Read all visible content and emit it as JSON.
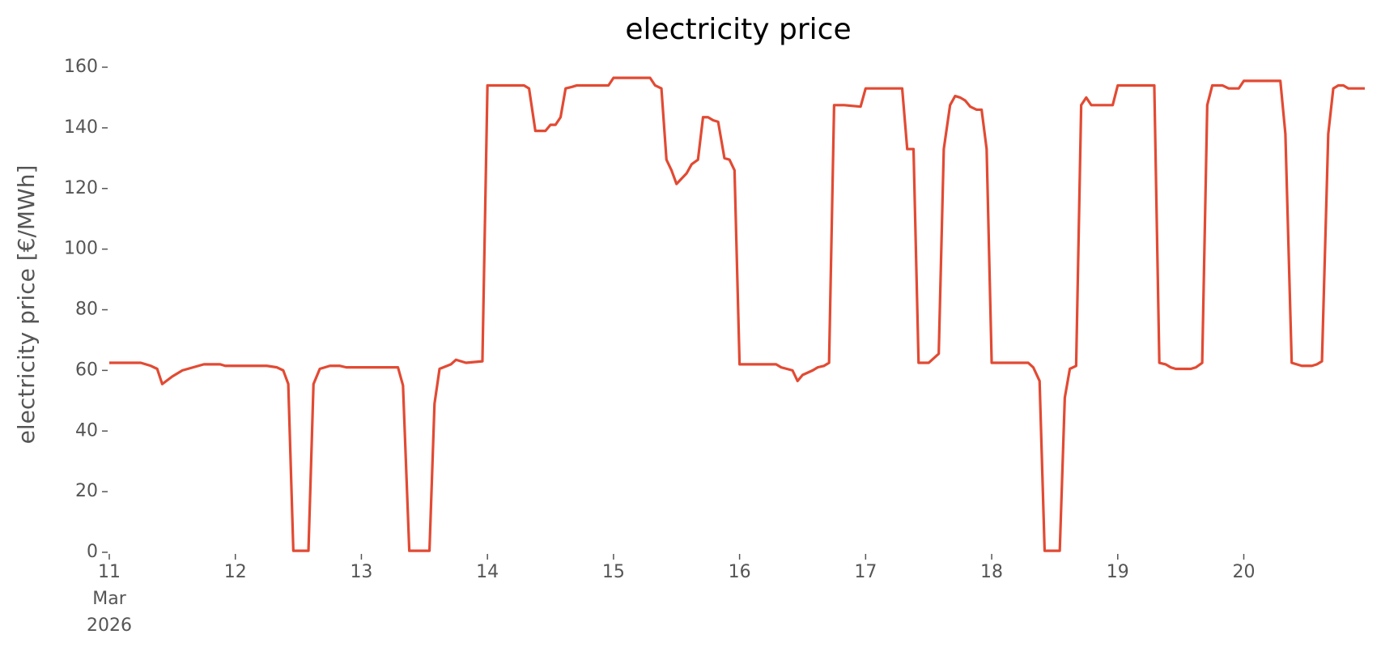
{
  "chart_data": {
    "type": "line",
    "title": "electricity price",
    "ylabel": "electricity price [€/MWh]",
    "xlim": [
      11,
      20.96
    ],
    "ylim": [
      0,
      160
    ],
    "xticks": [
      {
        "value": 11,
        "label": "11\nMar\n2026"
      },
      12,
      13,
      14,
      15,
      16,
      17,
      18,
      19,
      20
    ],
    "yticks": [
      0,
      20,
      40,
      60,
      80,
      100,
      120,
      140,
      160
    ],
    "grid": false,
    "series": [
      {
        "name": "electricity price",
        "color": "#e24a33",
        "x": [
          11.0,
          11.25,
          11.33,
          11.38,
          11.42,
          11.5,
          11.58,
          11.75,
          11.88,
          11.92,
          12.25,
          12.33,
          12.38,
          12.42,
          12.46,
          12.58,
          12.62,
          12.67,
          12.75,
          12.83,
          12.88,
          12.92,
          13.0,
          13.29,
          13.33,
          13.38,
          13.54,
          13.58,
          13.62,
          13.71,
          13.75,
          13.83,
          13.96,
          14.0,
          14.29,
          14.33,
          14.38,
          14.46,
          14.5,
          14.54,
          14.58,
          14.62,
          14.67,
          14.71,
          14.96,
          15.0,
          15.29,
          15.33,
          15.38,
          15.42,
          15.46,
          15.5,
          15.58,
          15.62,
          15.67,
          15.71,
          15.75,
          15.79,
          15.83,
          15.88,
          15.92,
          15.96,
          16.0,
          16.29,
          16.33,
          16.42,
          16.46,
          16.5,
          16.58,
          16.62,
          16.67,
          16.71,
          16.75,
          16.83,
          16.96,
          17.0,
          17.29,
          17.33,
          17.38,
          17.42,
          17.5,
          17.54,
          17.58,
          17.62,
          17.67,
          17.71,
          17.75,
          17.79,
          17.83,
          17.88,
          17.92,
          17.96,
          18.0,
          18.29,
          18.33,
          18.38,
          18.42,
          18.54,
          18.58,
          18.62,
          18.67,
          18.71,
          18.75,
          18.79,
          18.96,
          19.0,
          19.29,
          19.33,
          19.38,
          19.42,
          19.46,
          19.58,
          19.62,
          19.67,
          19.71,
          19.75,
          19.83,
          19.88,
          19.96,
          20.0,
          20.29,
          20.33,
          20.38,
          20.42,
          20.46,
          20.54,
          20.58,
          20.62,
          20.67,
          20.71,
          20.75,
          20.79,
          20.83,
          20.96
        ],
        "values": [
          62.5,
          62.5,
          61.5,
          60.5,
          55.5,
          58,
          60,
          62,
          62,
          61.5,
          61.5,
          61,
          60,
          55.5,
          0.5,
          0.5,
          55.5,
          60.5,
          61.5,
          61.5,
          61,
          61,
          61,
          61,
          55,
          0.5,
          0.5,
          49,
          60.5,
          62,
          63.5,
          62.5,
          63,
          154,
          154,
          153,
          139,
          139,
          141,
          141,
          143.5,
          153,
          153.5,
          154,
          154,
          156.5,
          156.5,
          154,
          153,
          129.5,
          126,
          121.5,
          125,
          128,
          129.5,
          143.5,
          143.5,
          142.5,
          142,
          130,
          129.5,
          126,
          62,
          62,
          61,
          60,
          56.5,
          58.5,
          60,
          61,
          61.5,
          62.5,
          147.5,
          147.5,
          147,
          153,
          153,
          133,
          133,
          62.5,
          62.5,
          64,
          65.5,
          133,
          147.5,
          150.5,
          150,
          149,
          147,
          146,
          146,
          133,
          62.5,
          62.5,
          61,
          56.5,
          0.5,
          0.5,
          51,
          60.5,
          61.5,
          147.5,
          150,
          147.5,
          147.5,
          154,
          154,
          62.5,
          62,
          61,
          60.5,
          60.5,
          61,
          62.5,
          147.5,
          154,
          154,
          153,
          153,
          155.5,
          155.5,
          138,
          62.5,
          62,
          61.5,
          61.5,
          62,
          63,
          138,
          153,
          154,
          154,
          153,
          153
        ]
      }
    ]
  }
}
